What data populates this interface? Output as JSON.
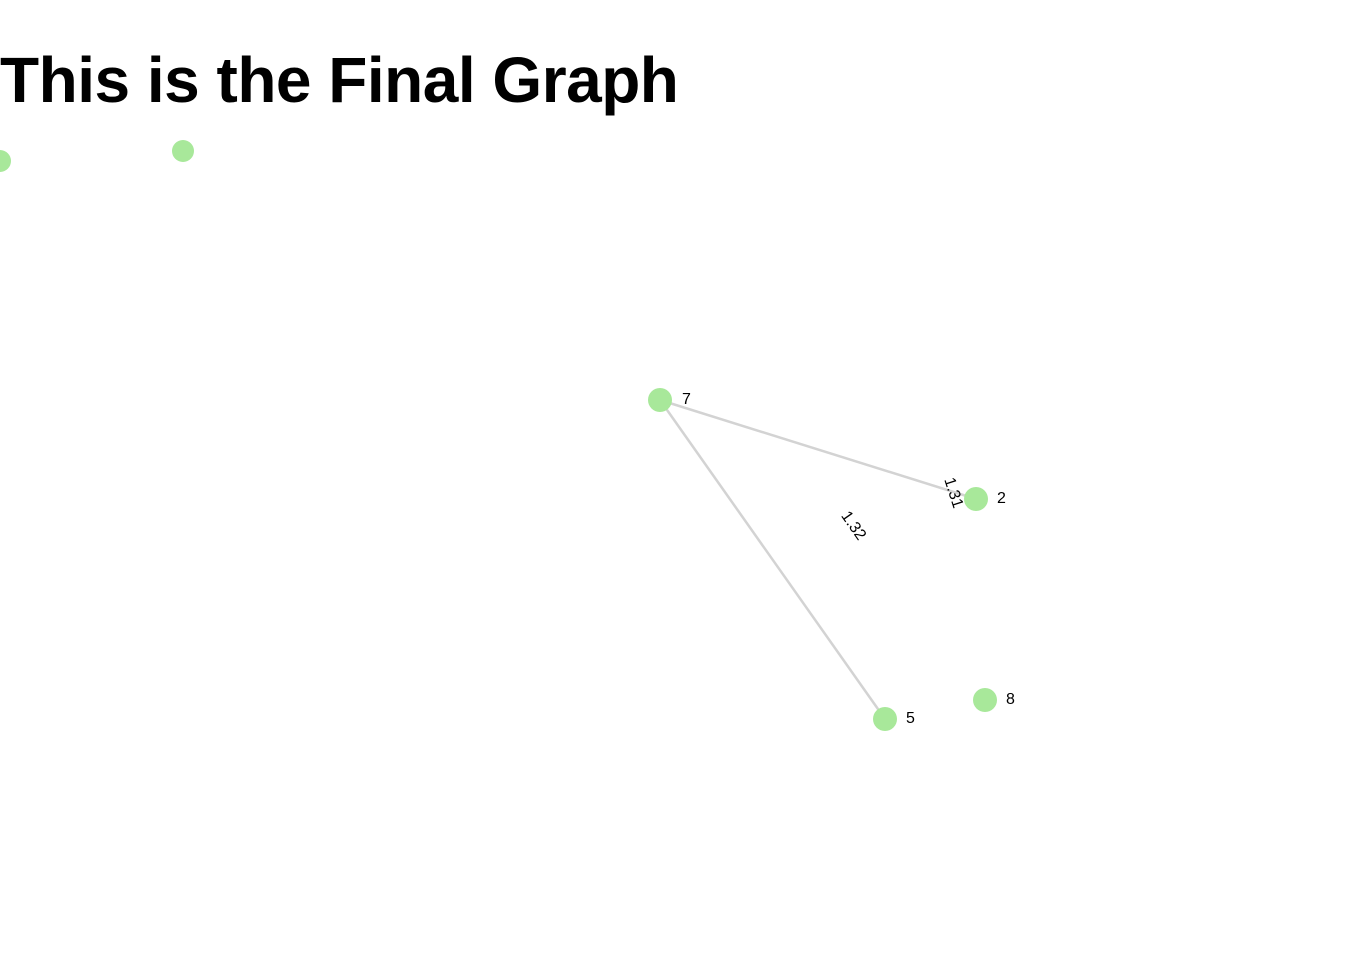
{
  "page": {
    "title": "This is the Final Graph"
  },
  "graph": {
    "node_color": "#a8e89a",
    "edge_color": "#d3d3d3",
    "nodes": [
      {
        "id": "7",
        "label": "7"
      },
      {
        "id": "2",
        "label": "2"
      },
      {
        "id": "5",
        "label": "5"
      },
      {
        "id": "8",
        "label": "8"
      }
    ],
    "edges": [
      {
        "source": "7",
        "target": "2",
        "weight": "1.31"
      },
      {
        "source": "7",
        "target": "5",
        "weight": "1.32"
      }
    ]
  }
}
